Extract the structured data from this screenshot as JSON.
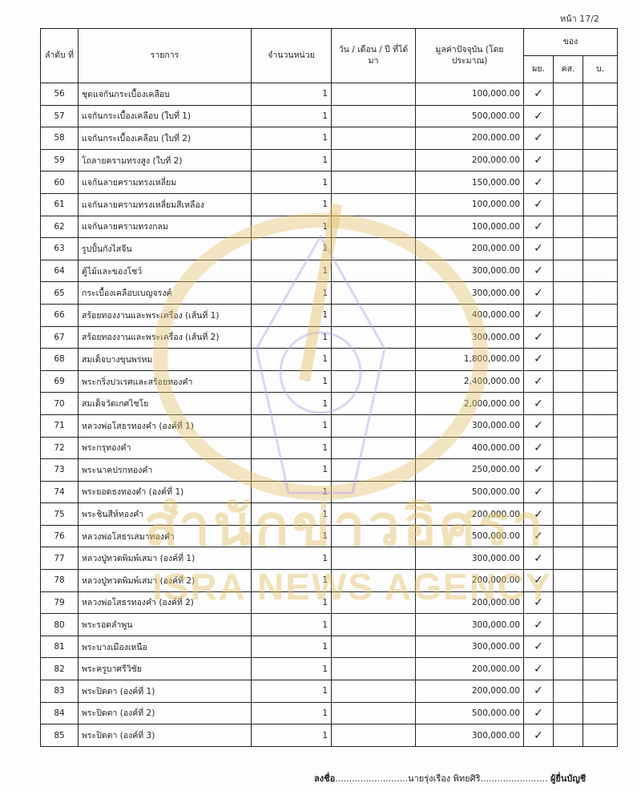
{
  "page_number": "หน้า 17/2",
  "table": {
    "headers": {
      "no": "ลำดับ ที่",
      "item": "รายการ",
      "qty": "จำนวนหน่วย",
      "date": "วัน / เดือน / ปี ที่ได้มา",
      "value": "มูลค่าปัจจุบัน (โดยประมาณ)",
      "owner": "ของ",
      "owner_sub": [
        "ผย.",
        "คส.",
        "บ."
      ]
    },
    "rows": [
      {
        "no": "56",
        "item": "ชุดแจกันกระเบื้องเคลือบ",
        "qty": "1",
        "date": "",
        "value": "100,000.00",
        "owner": "ผย."
      },
      {
        "no": "57",
        "item": "แจกันกระเบื้องเคลือบ (ใบที่ 1)",
        "qty": "1",
        "date": "",
        "value": "500,000.00",
        "owner": "ผย."
      },
      {
        "no": "58",
        "item": "แจกันกระเบื้องเคลือบ (ใบที่ 2)",
        "qty": "1",
        "date": "",
        "value": "200,000.00",
        "owner": "ผย."
      },
      {
        "no": "59",
        "item": "โถลายครามทรงสูง (ใบที่ 2)",
        "qty": "1",
        "date": "",
        "value": "200,000.00",
        "owner": "ผย."
      },
      {
        "no": "60",
        "item": "แจกันลายครามทรงเหลี่ยม",
        "qty": "1",
        "date": "",
        "value": "150,000.00",
        "owner": "ผย."
      },
      {
        "no": "61",
        "item": "แจกันลายครามทรงเหลี่ยมสีเหลือง",
        "qty": "1",
        "date": "",
        "value": "100,000.00",
        "owner": "ผย."
      },
      {
        "no": "62",
        "item": "แจกันลายครามทรงกลม",
        "qty": "1",
        "date": "",
        "value": "100,000.00",
        "owner": "ผย."
      },
      {
        "no": "63",
        "item": "รูปปั้นกังไสจีน",
        "qty": "1",
        "date": "",
        "value": "200,000.00",
        "owner": "ผย."
      },
      {
        "no": "64",
        "item": "ตู้ไม้และของโชว์",
        "qty": "1",
        "date": "",
        "value": "300,000.00",
        "owner": "ผย."
      },
      {
        "no": "65",
        "item": "กระเบื้องเคลือบเบญจรงค์",
        "qty": "1",
        "date": "",
        "value": "300,000.00",
        "owner": "ผย."
      },
      {
        "no": "66",
        "item": "สร้อยทองงานและพระเครื่อง (เส้นที่ 1)",
        "qty": "1",
        "date": "",
        "value": "400,000.00",
        "owner": "ผย."
      },
      {
        "no": "67",
        "item": "สร้อยทองงานและพระเครื่อง (เส้นที่ 2)",
        "qty": "1",
        "date": "",
        "value": "300,000.00",
        "owner": "ผย."
      },
      {
        "no": "68",
        "item": "สมเด็จบางขุนพรหม",
        "qty": "1",
        "date": "",
        "value": "1,800,000.00",
        "owner": "ผย."
      },
      {
        "no": "69",
        "item": "พระกริ่งปวเรศและสร้อยทองคำ",
        "qty": "1",
        "date": "",
        "value": "2,400,000.00",
        "owner": "ผย."
      },
      {
        "no": "70",
        "item": "สมเด็จวัดเกศไชโย",
        "qty": "1",
        "date": "",
        "value": "2,000,000.00",
        "owner": "ผย."
      },
      {
        "no": "71",
        "item": "หลวงพ่อโสธรทองคำ (องค์ที่ 1)",
        "qty": "1",
        "date": "",
        "value": "300,000.00",
        "owner": "ผย."
      },
      {
        "no": "72",
        "item": "พระกรุทองคำ",
        "qty": "1",
        "date": "",
        "value": "400,000.00",
        "owner": "ผย."
      },
      {
        "no": "73",
        "item": "พระนาคปรกทองคำ",
        "qty": "1",
        "date": "",
        "value": "250,000.00",
        "owner": "ผย."
      },
      {
        "no": "74",
        "item": "พระยอดธงทองคำ (องค์ที่ 1)",
        "qty": "1",
        "date": "",
        "value": "500,000.00",
        "owner": "ผย."
      },
      {
        "no": "75",
        "item": "พระชินสีห์ทองคำ",
        "qty": "1",
        "date": "",
        "value": "200,000.00",
        "owner": "ผย."
      },
      {
        "no": "76",
        "item": "หลวงพ่อโสธรเสมาทองคำ",
        "qty": "1",
        "date": "",
        "value": "500,000.00",
        "owner": "ผย."
      },
      {
        "no": "77",
        "item": "หลวงปู่ทวดพิมพ์เสมา (องค์ที่ 1)",
        "qty": "1",
        "date": "",
        "value": "300,000.00",
        "owner": "ผย."
      },
      {
        "no": "78",
        "item": "หลวงปู่ทวดพิมพ์เสมา (องค์ที่ 2)",
        "qty": "1",
        "date": "",
        "value": "200,000.00",
        "owner": "ผย."
      },
      {
        "no": "79",
        "item": "หลวงพ่อโสธรทองคำ (องค์ที่ 2)",
        "qty": "1",
        "date": "",
        "value": "200,000.00",
        "owner": "ผย."
      },
      {
        "no": "80",
        "item": "พระรอดลำพูน",
        "qty": "1",
        "date": "",
        "value": "300,000.00",
        "owner": "ผย."
      },
      {
        "no": "81",
        "item": "พระบางเมืองเหนือ",
        "qty": "1",
        "date": "",
        "value": "300,000.00",
        "owner": "ผย."
      },
      {
        "no": "82",
        "item": "พระครูบาศรีวิชัย",
        "qty": "1",
        "date": "",
        "value": "200,000.00",
        "owner": "ผย."
      },
      {
        "no": "83",
        "item": "พระปิดตา (องค์ที่ 1)",
        "qty": "1",
        "date": "",
        "value": "200,000.00",
        "owner": "ผย."
      },
      {
        "no": "84",
        "item": "พระปิดตา (องค์ที่ 2)",
        "qty": "1",
        "date": "",
        "value": "500,000.00",
        "owner": "ผย."
      },
      {
        "no": "85",
        "item": "พระปิดตา (องค์ที่ 3)",
        "qty": "1",
        "date": "",
        "value": "300,000.00",
        "owner": "ผย."
      }
    ],
    "check_mark": "✓"
  },
  "signature": {
    "prefix": "ลงชื่อ",
    "dots_left": "..........................",
    "name": "นายรุ่งเรือง พิทยศิริ",
    "dots_right": "........................",
    "role": "ผู้ยื่นบัญชี"
  },
  "watermark": {
    "thai": "สำนักข่าวอิศรา",
    "english": "ISRA NEWS AGENCY",
    "colors": {
      "gold": "#e1be64",
      "purple": "#b9a0e6"
    }
  }
}
